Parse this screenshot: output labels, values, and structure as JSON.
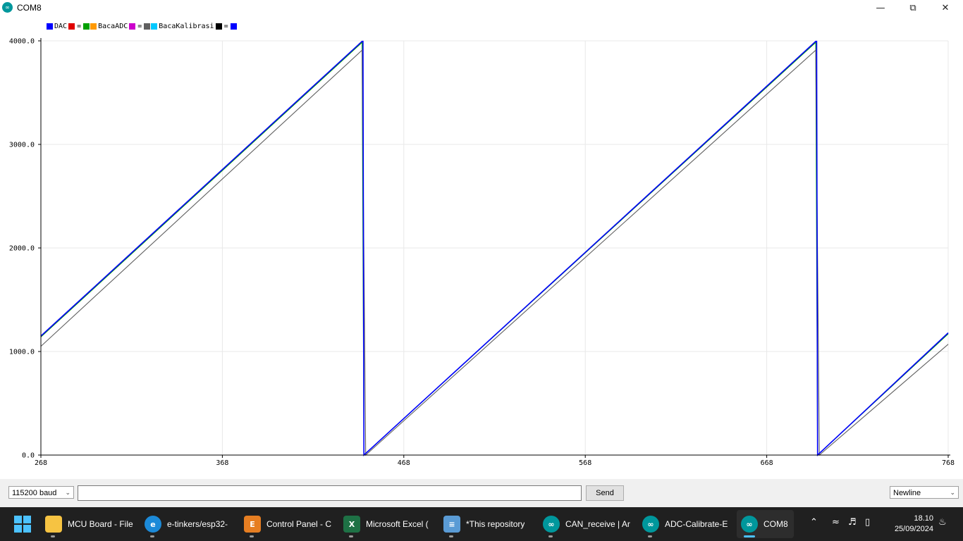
{
  "window": {
    "title": "COM8",
    "app_icon": "arduino-icon"
  },
  "legend": [
    {
      "label": "DAC",
      "color": "#0000ff"
    },
    {
      "label": "BacaADC",
      "color": "#00a000"
    },
    {
      "label": "BacaKalibrasi",
      "color": "#606060"
    }
  ],
  "legend_extra_colors": [
    "#e00000",
    "#ff9900",
    "#cc00cc",
    "#00c8ff",
    "#000000",
    "#0000ff"
  ],
  "chart_data": {
    "type": "line",
    "title": "",
    "xlabel": "",
    "ylabel": "",
    "xlim": [
      268,
      768
    ],
    "ylim": [
      0,
      4000
    ],
    "x_ticks": [
      "268",
      "368",
      "468",
      "568",
      "668",
      "768"
    ],
    "y_ticks": [
      "0.0",
      "1000.0",
      "2000.0",
      "3000.0",
      "4000.0"
    ],
    "grid": true,
    "legend_position": "top-left",
    "series": [
      {
        "name": "DAC",
        "color": "#0000ff",
        "x": [
          268,
          445,
          445.5,
          446,
          695,
          695.5,
          696,
          768
        ],
        "y": [
          1150,
          3995,
          3995,
          0,
          3995,
          3995,
          0,
          1180
        ]
      },
      {
        "name": "BacaADC",
        "color": "#00a000",
        "x": [
          268,
          445,
          446,
          695,
          696,
          768
        ],
        "y": [
          1140,
          3985,
          0,
          3985,
          0,
          1170
        ]
      },
      {
        "name": "BacaKalibrasi",
        "color": "#606060",
        "x": [
          268,
          445,
          447,
          695,
          697,
          768
        ],
        "y": [
          1050,
          3910,
          0,
          3910,
          0,
          1070
        ]
      }
    ]
  },
  "bottom": {
    "baud": "115200 baud",
    "send_label": "Send",
    "line_ending": "Newline",
    "input_value": ""
  },
  "taskbar": {
    "items": [
      {
        "label": "MCU Board - File",
        "icon": "folder-icon",
        "color": "#f6c342"
      },
      {
        "label": "e-tinkers/esp32-",
        "icon": "edge-icon",
        "color": "#1c8ad8"
      },
      {
        "label": "Control Panel - C",
        "icon": "e-icon",
        "color": "#e67e22"
      },
      {
        "label": "Microsoft Excel (",
        "icon": "excel-icon",
        "color": "#1e7145"
      },
      {
        "label": "*This repository ",
        "icon": "notepad-icon",
        "color": "#5a9bd5"
      },
      {
        "label": "CAN_receive | Ar",
        "icon": "arduino-icon",
        "color": "#00979c"
      },
      {
        "label": "ADC-Calibrate-E",
        "icon": "arduino-icon",
        "color": "#00979c"
      },
      {
        "label": "COM8",
        "icon": "arduino-icon",
        "color": "#00979c",
        "active": true
      }
    ],
    "time": "18.10",
    "date": "25/09/2024"
  }
}
